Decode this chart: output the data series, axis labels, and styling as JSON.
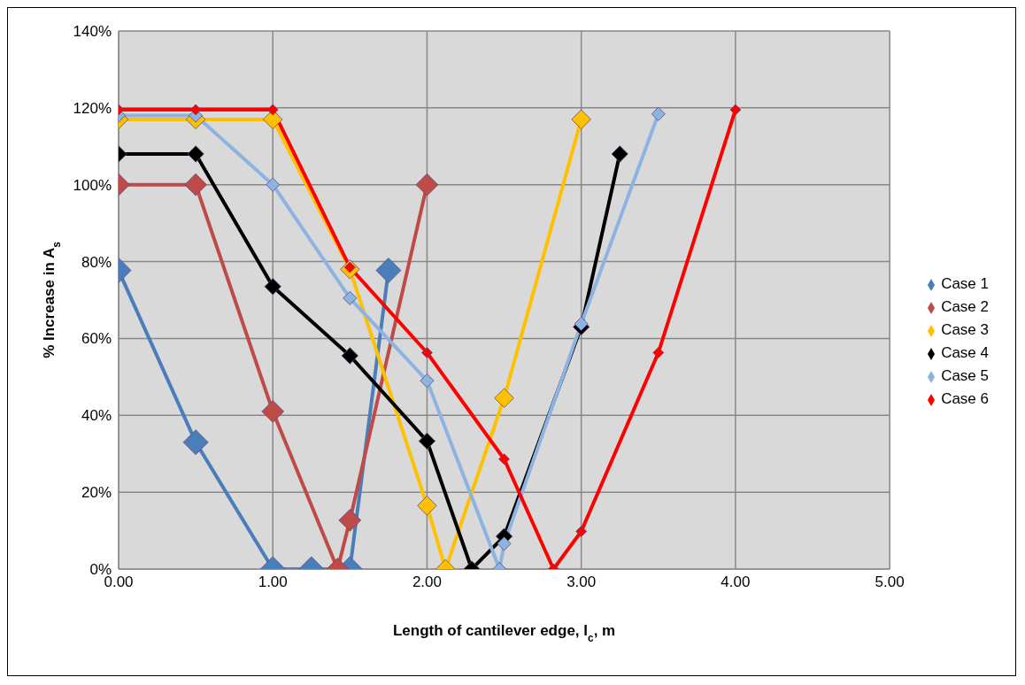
{
  "chart_data": {
    "type": "line",
    "xlabel": "Length of cantilever edge, l$_{c}$, m",
    "ylabel": "% Increase in A$_{s}$",
    "xlim": [
      0,
      5
    ],
    "xticks": [
      {
        "value": 0,
        "label": "0.00"
      },
      {
        "value": 1,
        "label": "1.00"
      },
      {
        "value": 2,
        "label": "2.00"
      },
      {
        "value": 3,
        "label": "3.00"
      },
      {
        "value": 4,
        "label": "4.00"
      },
      {
        "value": 5,
        "label": "5.00"
      }
    ],
    "ylim": [
      0,
      140
    ],
    "yticks": [
      {
        "value": 0,
        "label": "0%"
      },
      {
        "value": 20,
        "label": "20%"
      },
      {
        "value": 40,
        "label": "40%"
      },
      {
        "value": 60,
        "label": "60%"
      },
      {
        "value": 80,
        "label": "80%"
      },
      {
        "value": 100,
        "label": "100%"
      },
      {
        "value": 120,
        "label": "120%"
      },
      {
        "value": 140,
        "label": "140%"
      }
    ],
    "grid": true,
    "legend": "right",
    "marker": "diamond",
    "line_style": "solid",
    "series": [
      {
        "name": "Case 1",
        "color": "#4a7ebb",
        "x": [
          0,
          0.5,
          1,
          1.25,
          1.5,
          1.75
        ],
        "values": [
          77.7,
          33,
          0,
          0,
          0,
          77.7
        ]
      },
      {
        "name": "Case 2",
        "color": "#be4b48",
        "x": [
          0,
          0.5,
          1,
          1.42,
          1.5,
          2
        ],
        "values": [
          100,
          100,
          41,
          0,
          12.7,
          100
        ]
      },
      {
        "name": "Case 3",
        "color": "#ffc000",
        "x": [
          0,
          0.5,
          1,
          1.5,
          2,
          2.12,
          2.5,
          3
        ],
        "values": [
          117,
          117,
          117,
          78,
          16.5,
          0,
          44.5,
          117
        ]
      },
      {
        "name": "Case 4",
        "color": "#000000",
        "x": [
          0,
          0.5,
          1,
          1.5,
          2,
          2.29,
          2.5,
          3,
          3.25
        ],
        "values": [
          108,
          108,
          73.5,
          55.5,
          33.3,
          0,
          8.5,
          63,
          108
        ]
      },
      {
        "name": "Case 5",
        "color": "#8db3e2",
        "x": [
          0,
          0.5,
          1,
          1.5,
          2,
          2.47,
          2.5,
          3,
          3.5
        ],
        "values": [
          118,
          118,
          100,
          70.5,
          49,
          0,
          6.6,
          63.8,
          118.4
        ]
      },
      {
        "name": "Case 6",
        "color": "#ff0000",
        "x": [
          0,
          0.5,
          1,
          1.5,
          2,
          2.5,
          2.82,
          3,
          3.5,
          4
        ],
        "values": [
          119.5,
          119.5,
          119.5,
          78.5,
          56.3,
          28.6,
          0,
          9.8,
          56.3,
          119.5
        ]
      }
    ]
  }
}
